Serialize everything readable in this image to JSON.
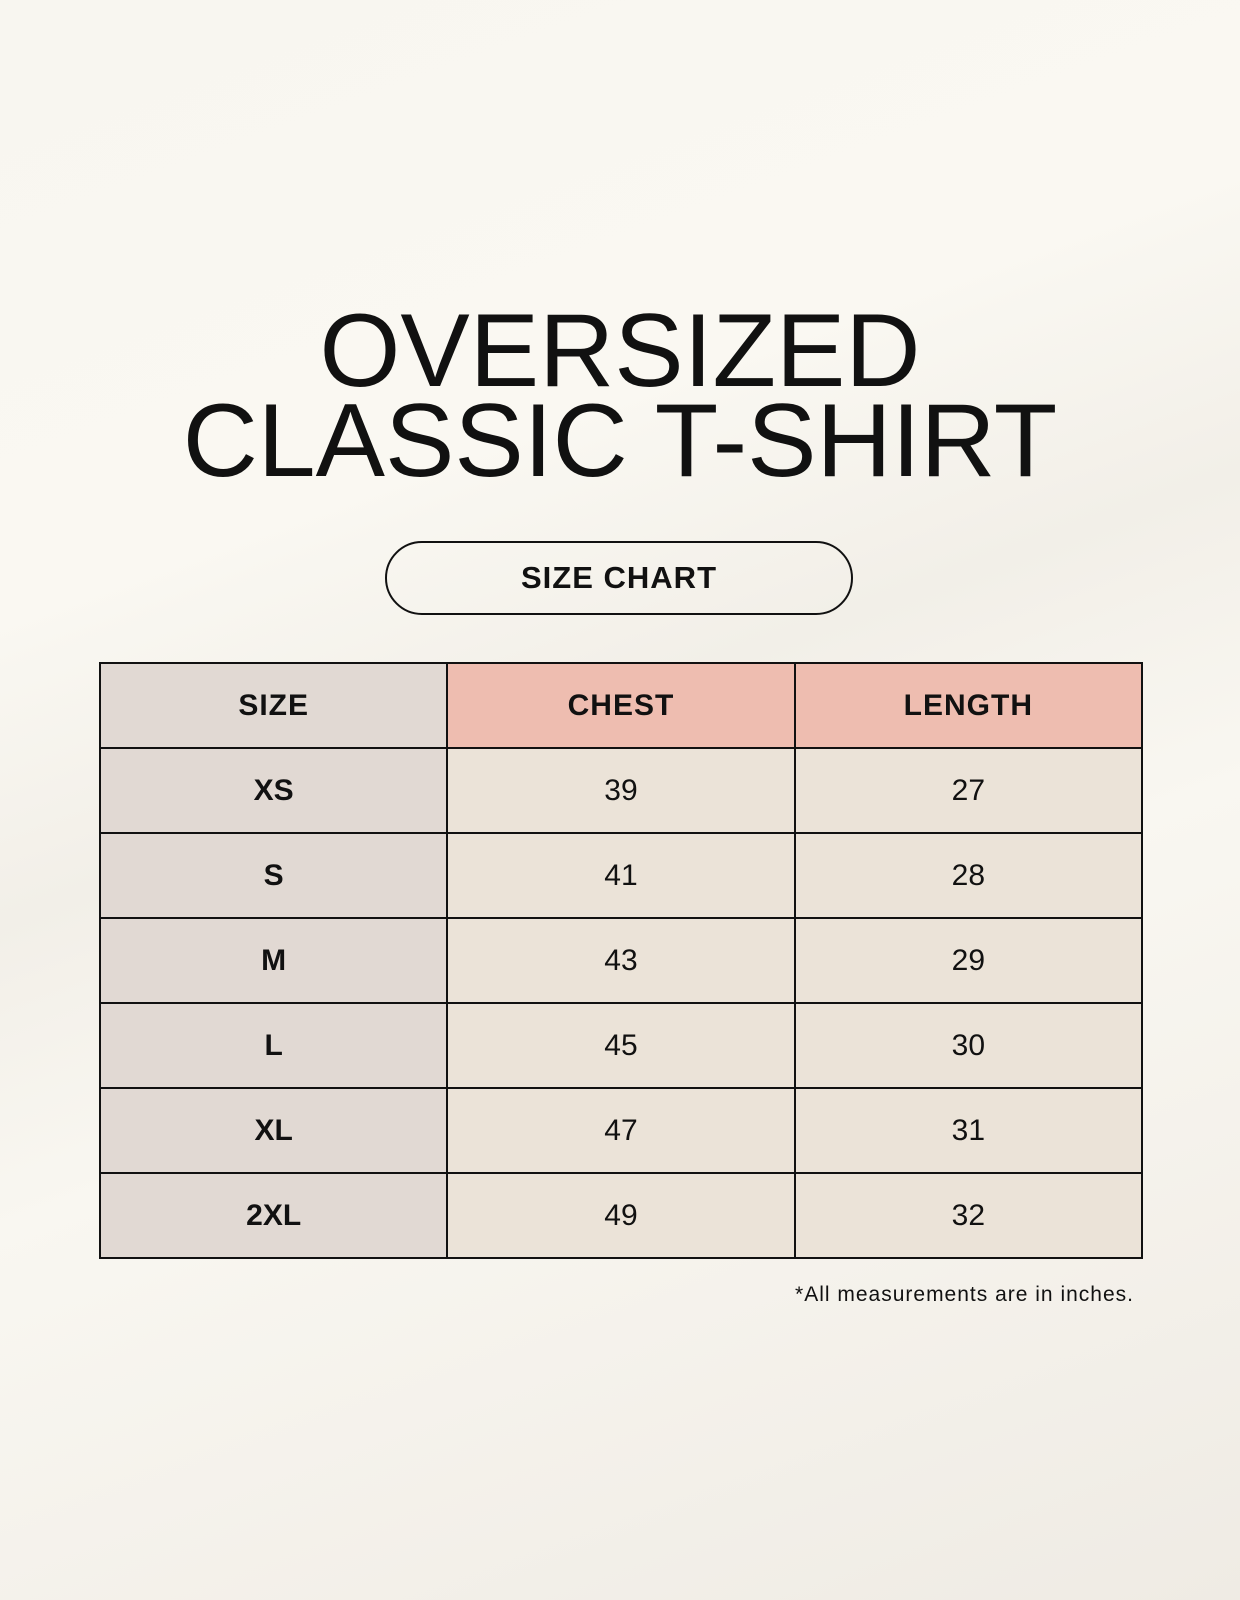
{
  "title": {
    "line1": "OVERSIZED",
    "line2": "CLASSIC T-SHIRT"
  },
  "subtitle": "SIZE CHART",
  "table": {
    "headers": [
      "SIZE",
      "CHEST",
      "LENGTH"
    ],
    "rows": [
      [
        "XS",
        "39",
        "27"
      ],
      [
        "S",
        "41",
        "28"
      ],
      [
        "M",
        "43",
        "29"
      ],
      [
        "L",
        "45",
        "30"
      ],
      [
        "XL",
        "47",
        "31"
      ],
      [
        "2XL",
        "49",
        "32"
      ]
    ]
  },
  "footnote": "*All measurements are in inches.",
  "colors": {
    "size_column": "#e1d9d3",
    "measure_header": "#eebdb0",
    "measure_cells": "#ebe3d8"
  }
}
